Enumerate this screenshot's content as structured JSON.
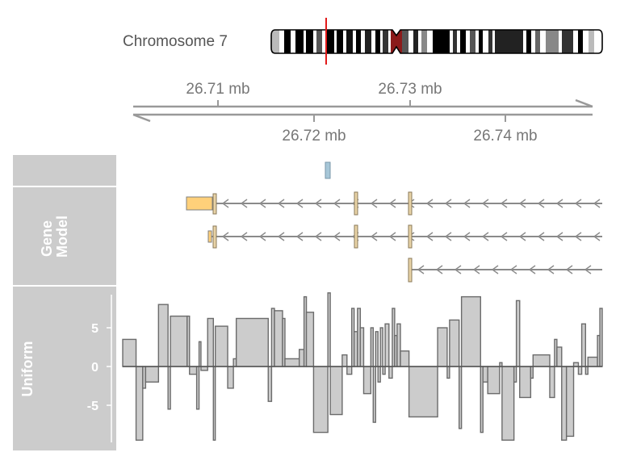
{
  "ideogram": {
    "label": "Chromosome 7"
  },
  "axis": {
    "ticks_top": [
      "26.71 mb",
      "26.73 mb"
    ],
    "ticks_bottom": [
      "26.72 mb",
      "26.74 mb"
    ]
  },
  "tracks": {
    "gene_model": {
      "label": "Gene\nModel"
    },
    "uniform": {
      "label": "Uniform"
    }
  },
  "chart_data": {
    "type": "bar",
    "title": "",
    "ylabel": "Uniform",
    "yticks": [
      5,
      0,
      -5
    ],
    "ylim": [
      -10,
      10
    ],
    "bars": [
      [
        0.0,
        2.8,
        3.5
      ],
      [
        2.8,
        4.2,
        -9.5
      ],
      [
        4.2,
        4.8,
        -2.8
      ],
      [
        4.8,
        7.5,
        -2.0
      ],
      [
        7.5,
        9.5,
        8.0
      ],
      [
        9.5,
        10.0,
        -5.5
      ],
      [
        10.0,
        13.5,
        6.5
      ],
      [
        13.5,
        14.0,
        6.5
      ],
      [
        14.0,
        15.5,
        -1.0
      ],
      [
        15.5,
        16.0,
        -5.5
      ],
      [
        16.0,
        16.4,
        3.2
      ],
      [
        16.4,
        17.8,
        -0.5
      ],
      [
        17.8,
        19.0,
        6.2
      ],
      [
        19.0,
        19.4,
        -9.5
      ],
      [
        19.4,
        22.0,
        5.2
      ],
      [
        22.0,
        23.2,
        -2.8
      ],
      [
        23.2,
        23.8,
        1.0
      ],
      [
        23.8,
        30.5,
        6.2
      ],
      [
        30.5,
        31.2,
        -4.5
      ],
      [
        31.2,
        31.8,
        7.5
      ],
      [
        31.8,
        33.5,
        7.2
      ],
      [
        33.5,
        34.0,
        6.2
      ],
      [
        34.0,
        37.0,
        1.0
      ],
      [
        37.0,
        38.0,
        2.2
      ],
      [
        38.0,
        38.5,
        9.0
      ],
      [
        38.5,
        40.0,
        7.0
      ],
      [
        40.0,
        43.0,
        -8.5
      ],
      [
        43.0,
        43.5,
        9.5
      ],
      [
        43.5,
        46.0,
        -6.2
      ],
      [
        46.0,
        47.0,
        1.5
      ],
      [
        47.0,
        48.0,
        -1.0
      ],
      [
        48.0,
        48.5,
        7.5
      ],
      [
        48.5,
        49.2,
        4.5
      ],
      [
        49.2,
        49.8,
        7.5
      ],
      [
        49.8,
        50.5,
        5.0
      ],
      [
        50.5,
        52.0,
        -3.5
      ],
      [
        52.0,
        52.5,
        5.0
      ],
      [
        52.5,
        53.0,
        -7.2
      ],
      [
        53.0,
        53.5,
        4.5
      ],
      [
        53.5,
        54.0,
        -2.0
      ],
      [
        54.0,
        54.5,
        5.0
      ],
      [
        54.5,
        55.0,
        -1.0
      ],
      [
        55.0,
        55.8,
        5.5
      ],
      [
        55.8,
        56.5,
        -1.5
      ],
      [
        56.5,
        57.0,
        7.5
      ],
      [
        57.0,
        57.5,
        4.0
      ],
      [
        57.5,
        58.2,
        5.5
      ],
      [
        58.2,
        60.0,
        2.0
      ],
      [
        60.0,
        66.0,
        -6.5
      ],
      [
        66.0,
        68.0,
        5.0
      ],
      [
        68.0,
        68.5,
        -1.5
      ],
      [
        68.5,
        70.5,
        6.0
      ],
      [
        70.5,
        71.0,
        -8.0
      ],
      [
        71.0,
        75.0,
        9.0
      ],
      [
        75.0,
        75.5,
        -8.5
      ],
      [
        75.5,
        76.5,
        -2.0
      ],
      [
        76.5,
        79.0,
        -3.5
      ],
      [
        79.0,
        79.5,
        0.5
      ],
      [
        79.5,
        82.0,
        -9.5
      ],
      [
        82.0,
        82.5,
        -2.0
      ],
      [
        82.5,
        83.2,
        8.5
      ],
      [
        83.2,
        85.5,
        -4.0
      ],
      [
        85.5,
        86.0,
        -1.5
      ],
      [
        86.0,
        89.5,
        1.5
      ],
      [
        89.5,
        90.5,
        -4.0
      ],
      [
        90.5,
        91.0,
        3.5
      ],
      [
        91.0,
        92.0,
        2.5
      ],
      [
        92.0,
        93.0,
        -9.5
      ],
      [
        93.0,
        94.5,
        -9.0
      ],
      [
        94.5,
        95.5,
        0.5
      ],
      [
        95.5,
        96.2,
        -1.0
      ],
      [
        96.2,
        97.0,
        5.5
      ],
      [
        97.0,
        97.5,
        -1.0
      ],
      [
        97.5,
        99.5,
        1.2
      ],
      [
        99.5,
        100.0,
        4.0
      ],
      [
        100.0,
        100.5,
        7.5
      ]
    ]
  }
}
